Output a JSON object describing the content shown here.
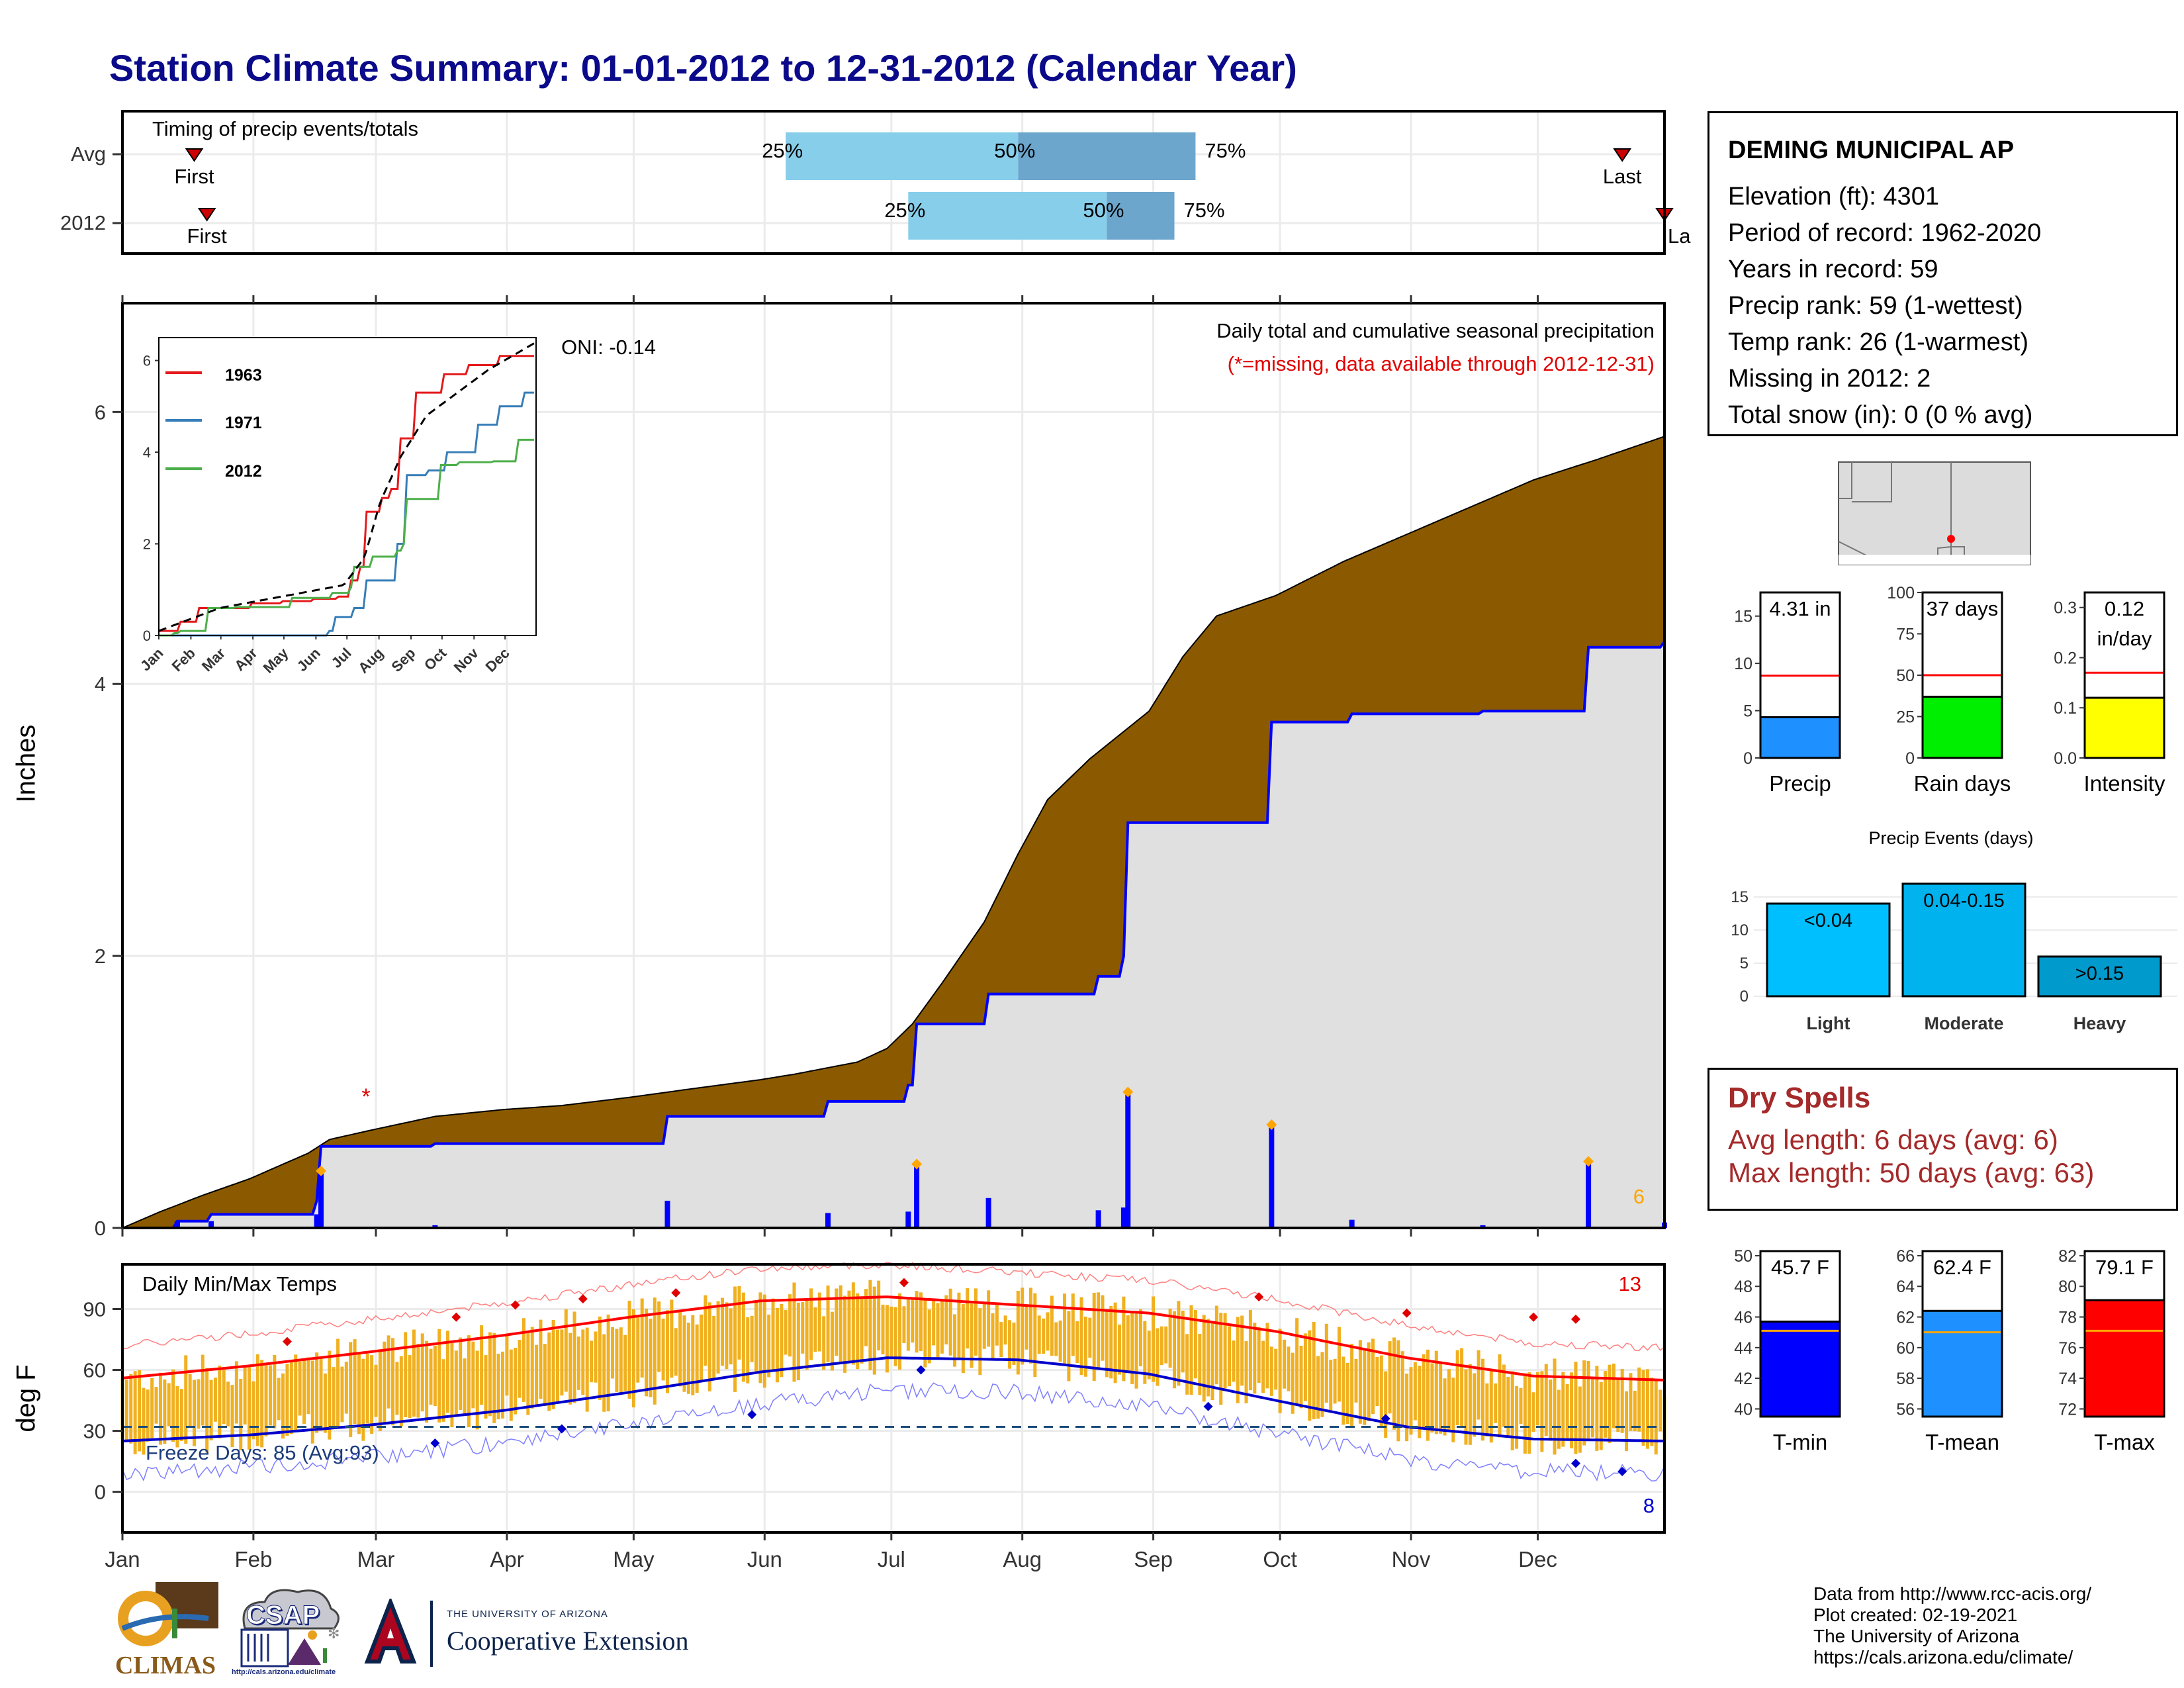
{
  "title": "Station Climate Summary: 01-01-2012 to 12-31-2012 (Calendar Year)",
  "timing": {
    "label": "Timing of precip events/totals",
    "rows": [
      "Avg",
      "2012"
    ],
    "first_label": "First",
    "last_label": "Last",
    "last_label_2012": "La",
    "pct25": "25%",
    "pct50": "50%",
    "pct75": "75%",
    "avg": {
      "first_doy": 18,
      "p25_doy": 158,
      "p50_doy": 213,
      "p75_doy": 255,
      "last_doy": 356
    },
    "y2012": {
      "first_doy": 21,
      "p25_doy": 187,
      "p50_doy": 234,
      "p75_doy": 250,
      "last_doy": 366
    }
  },
  "precip_panel": {
    "ylabel": "Inches",
    "yticks": [
      "0",
      "2",
      "4",
      "6"
    ],
    "months": [
      "Jan",
      "Feb",
      "Mar",
      "Apr",
      "May",
      "Jun",
      "Jul",
      "Aug",
      "Sep",
      "Oct",
      "Nov",
      "Dec"
    ],
    "oni": "ONI: -0.14",
    "caption": "Daily total and cumulative seasonal precipitation",
    "missing_note": "(*=missing, data available through 2012-12-31)",
    "extreme_count": "6",
    "missing_marker": "*"
  },
  "inset": {
    "legend": [
      "1963",
      "1971",
      "2012"
    ],
    "yticks": [
      "0",
      "2",
      "4",
      "6"
    ],
    "months": [
      "Jan",
      "Feb",
      "Mar",
      "Apr",
      "May",
      "Jun",
      "Jul",
      "Aug",
      "Sep",
      "Oct",
      "Nov",
      "Dec"
    ]
  },
  "temp_panel": {
    "ylabel": "deg F",
    "label": "Daily Min/Max Temps",
    "yticks": [
      "0",
      "30",
      "60",
      "90"
    ],
    "freeze": "Freeze Days: 85 (Avg:93)",
    "hot_count": "13",
    "cold_count": "8"
  },
  "station": {
    "name": "DEMING MUNICIPAL AP",
    "lines": [
      "Elevation (ft): 4301",
      "Period of record: 1962-2020",
      "Years in record: 59",
      "Precip rank: 59 (1-wettest)",
      "Temp rank: 26 (1-warmest)",
      "Missing in 2012: 2",
      "Total snow (in): 0 (0 % avg)"
    ]
  },
  "bars_top": [
    {
      "label": "Precip",
      "value_text": "4.31 in",
      "value": 4.31,
      "avg": 8.7,
      "ymax": 17.5,
      "ticks": [
        "0",
        "5",
        "10",
        "15"
      ],
      "tick_vals": [
        0,
        5,
        10,
        15
      ],
      "color": "#1e90ff"
    },
    {
      "label": "Rain days",
      "value_text": "37 days",
      "value": 37,
      "avg": 50,
      "ymax": 100,
      "ticks": [
        "0",
        "25",
        "50",
        "75",
        "100"
      ],
      "tick_vals": [
        0,
        25,
        50,
        75,
        100
      ],
      "color": "#00ee00"
    },
    {
      "label": "Intensity",
      "value_text": "0.12",
      "value_text2": "in/day",
      "value": 0.12,
      "avg": 0.17,
      "ymax": 0.33,
      "ticks": [
        "0.0",
        "0.1",
        "0.2",
        "0.3"
      ],
      "tick_vals": [
        0,
        0.1,
        0.2,
        0.3
      ],
      "color": "#ffff00"
    }
  ],
  "events": {
    "title": "Precip Events (days)",
    "categories": [
      "Light",
      "Moderate",
      "Heavy"
    ],
    "labels": [
      "<0.04",
      "0.04-0.15",
      ">0.15"
    ],
    "values": [
      14,
      17,
      6
    ],
    "ticks": [
      "0",
      "5",
      "10",
      "15"
    ],
    "colors": [
      "#00bfff",
      "#00b2ee",
      "#009acd"
    ]
  },
  "dry_spells": {
    "title": "Dry Spells",
    "avg": "Avg length: 6 days (avg: 6)",
    "max": "Max length: 50 days (avg: 63)"
  },
  "bars_temp": [
    {
      "label": "T-min",
      "value_text": "45.7 F",
      "value": 45.7,
      "avg": 45.1,
      "ymin": 39.5,
      "ymax": 50.3,
      "ticks": [
        "40",
        "42",
        "44",
        "46",
        "48",
        "50"
      ],
      "tick_vals": [
        40,
        42,
        44,
        46,
        48,
        50
      ],
      "color": "#0000ff"
    },
    {
      "label": "T-mean",
      "value_text": "62.4 F",
      "value": 62.4,
      "avg": 61.0,
      "ymin": 55.5,
      "ymax": 66.3,
      "ticks": [
        "56",
        "58",
        "60",
        "62",
        "64",
        "66"
      ],
      "tick_vals": [
        56,
        58,
        60,
        62,
        64,
        66
      ],
      "color": "#1e90ff"
    },
    {
      "label": "T-max",
      "value_text": "79.1 F",
      "value": 79.1,
      "avg": 77.1,
      "ymin": 71.5,
      "ymax": 82.3,
      "ticks": [
        "72",
        "74",
        "76",
        "78",
        "80",
        "82"
      ],
      "tick_vals": [
        72,
        74,
        76,
        78,
        80,
        82
      ],
      "color": "#ff0000"
    }
  ],
  "credits": [
    "Data from http://www.rcc-acis.org/",
    "Plot created: 02-19-2021",
    "The University of Arizona",
    "https://cals.arizona.edu/climate/"
  ],
  "logos": {
    "climas": "CLIMAS",
    "csap": "CSAP",
    "csap_url": "http://cals.arizona.edu/climate",
    "ua_line1": "THE UNIVERSITY OF ARIZONA",
    "ua_line2": "Cooperative Extension"
  },
  "chart_data": [
    {
      "type": "area",
      "title": "Daily total and cumulative seasonal precipitation",
      "ylabel": "Inches",
      "ylim": [
        0,
        6.8
      ],
      "x_unit": "day of year 2012",
      "series": [
        {
          "name": "avg cumulative",
          "x": [
            1,
            10,
            20,
            31,
            45,
            50,
            60,
            75,
            91,
            105,
            121,
            135,
            152,
            160,
            175,
            182,
            188,
            195,
            205,
            213,
            220,
            230,
            244,
            252,
            260,
            274,
            290,
            305,
            320,
            335,
            350,
            366
          ],
          "y": [
            0,
            0.12,
            0.24,
            0.36,
            0.55,
            0.65,
            0.72,
            0.82,
            0.87,
            0.9,
            0.96,
            1.02,
            1.09,
            1.13,
            1.22,
            1.32,
            1.5,
            1.8,
            2.25,
            2.75,
            3.15,
            3.45,
            3.8,
            4.2,
            4.5,
            4.65,
            4.9,
            5.1,
            5.3,
            5.5,
            5.65,
            5.82
          ]
        },
        {
          "name": "2012 cumulative",
          "x": [
            1,
            14,
            22,
            44,
            47,
            48,
            75,
            130,
            168,
            187,
            189,
            206,
            232,
            238,
            239,
            273,
            292,
            323,
            348,
            366
          ],
          "y": [
            0,
            0.05,
            0.1,
            0.1,
            0.2,
            0.6,
            0.62,
            0.82,
            0.93,
            1.05,
            1.5,
            1.72,
            1.85,
            2.0,
            2.98,
            3.72,
            3.78,
            3.8,
            4.27,
            4.31
          ]
        }
      ]
    },
    {
      "type": "line",
      "title": "Daily Min/Max Temps",
      "ylabel": "deg F",
      "ylim": [
        -20,
        112
      ],
      "series": [
        {
          "name": "normal max",
          "x": [
            1,
            31,
            60,
            91,
            121,
            152,
            182,
            213,
            244,
            274,
            305,
            335,
            366
          ],
          "y": [
            56,
            62,
            69,
            77,
            86,
            94,
            96,
            92,
            88,
            79,
            66,
            57,
            55
          ]
        },
        {
          "name": "normal min",
          "x": [
            1,
            31,
            60,
            91,
            121,
            152,
            182,
            213,
            244,
            274,
            305,
            335,
            366
          ],
          "y": [
            25,
            28,
            33,
            40,
            49,
            59,
            66,
            65,
            58,
            45,
            32,
            26,
            25
          ]
        }
      ]
    },
    {
      "type": "bar",
      "categories": [
        "Light",
        "Moderate",
        "Heavy"
      ],
      "values": [
        14,
        17,
        6
      ],
      "title": "Precip Events (days)"
    }
  ]
}
